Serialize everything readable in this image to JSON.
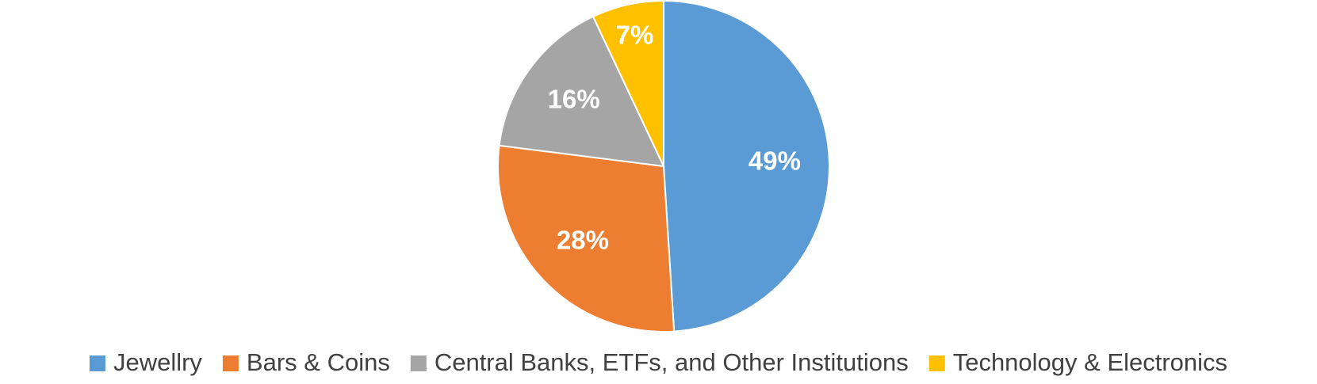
{
  "chart_data": {
    "type": "pie",
    "categories": [
      "Jewellry",
      "Bars & Coins",
      "Central Banks, ETFs, and Other Institutions",
      "Technology & Electronics"
    ],
    "values": [
      49,
      28,
      16,
      7
    ],
    "value_labels": [
      "49%",
      "28%",
      "16%",
      "7%"
    ],
    "colors": [
      "#5B9BD5",
      "#ED7D31",
      "#A5A5A5",
      "#FFC000"
    ],
    "legend": "bottom"
  }
}
